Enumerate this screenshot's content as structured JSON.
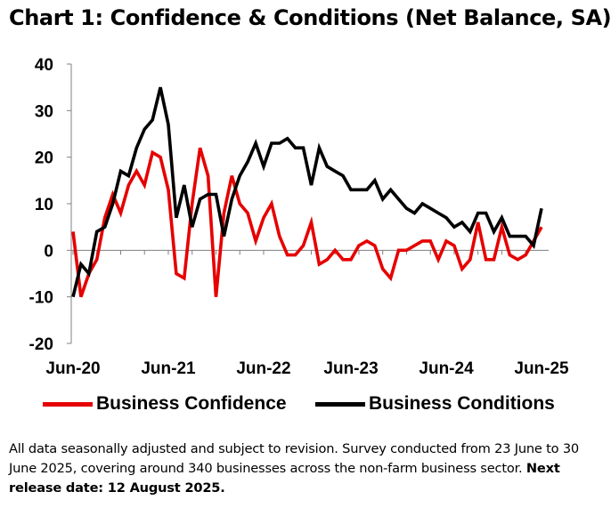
{
  "title": "Chart 1: Confidence & Conditions (Net Balance, SA)",
  "chart_data": {
    "type": "line",
    "ylim": [
      -20,
      40
    ],
    "yticks": [
      "40",
      "30",
      "20",
      "10",
      "0",
      "-10",
      "-20"
    ],
    "xlabels": [
      "Jun-20",
      "Jun-21",
      "Jun-22",
      "Jun-23",
      "Jun-24",
      "Jun-25"
    ],
    "x_start": "Jun-20",
    "x_end": "Jun-25",
    "series": [
      {
        "name": "Business Confidence",
        "color": "#e60000",
        "values": [
          4,
          -10,
          -5,
          -2,
          7,
          12,
          8,
          14,
          17,
          14,
          21,
          20,
          13,
          -5,
          -6,
          10,
          22,
          16,
          -10,
          8,
          16,
          10,
          8,
          2,
          7,
          10,
          3,
          -1,
          -1,
          1,
          6,
          -3,
          -2,
          0,
          -2,
          -2,
          1,
          2,
          1,
          -4,
          -6,
          0,
          0,
          1,
          2,
          2,
          -2,
          2,
          1,
          -4,
          -2,
          6,
          -2,
          -2,
          5,
          -1,
          -2,
          -1,
          2,
          5
        ],
        "anomalies": []
      },
      {
        "name": "Business Conditions",
        "color": "#000000",
        "values": [
          -10,
          -3,
          -5,
          4,
          5,
          10,
          17,
          16,
          22,
          26,
          28,
          35,
          27,
          7,
          14,
          5,
          11,
          12,
          12,
          3,
          11,
          16,
          19,
          23,
          18,
          23,
          23,
          24,
          22,
          22,
          14,
          22,
          18,
          17,
          16,
          13,
          13,
          13,
          15,
          11,
          13,
          11,
          9,
          8,
          10,
          9,
          8,
          7,
          5,
          6,
          4,
          8,
          8,
          4,
          7,
          3,
          3,
          3,
          1,
          9
        ]
      }
    ]
  },
  "legend": {
    "confidence_label": "Business Confidence",
    "conditions_label": "Business Conditions"
  },
  "note": {
    "text": "All data seasonally adjusted and subject to revision. Survey conducted from 23 June to 30 June 2025, covering around 340 businesses across the non-farm business sector. ",
    "bold": "Next release date: 12 August 2025."
  }
}
